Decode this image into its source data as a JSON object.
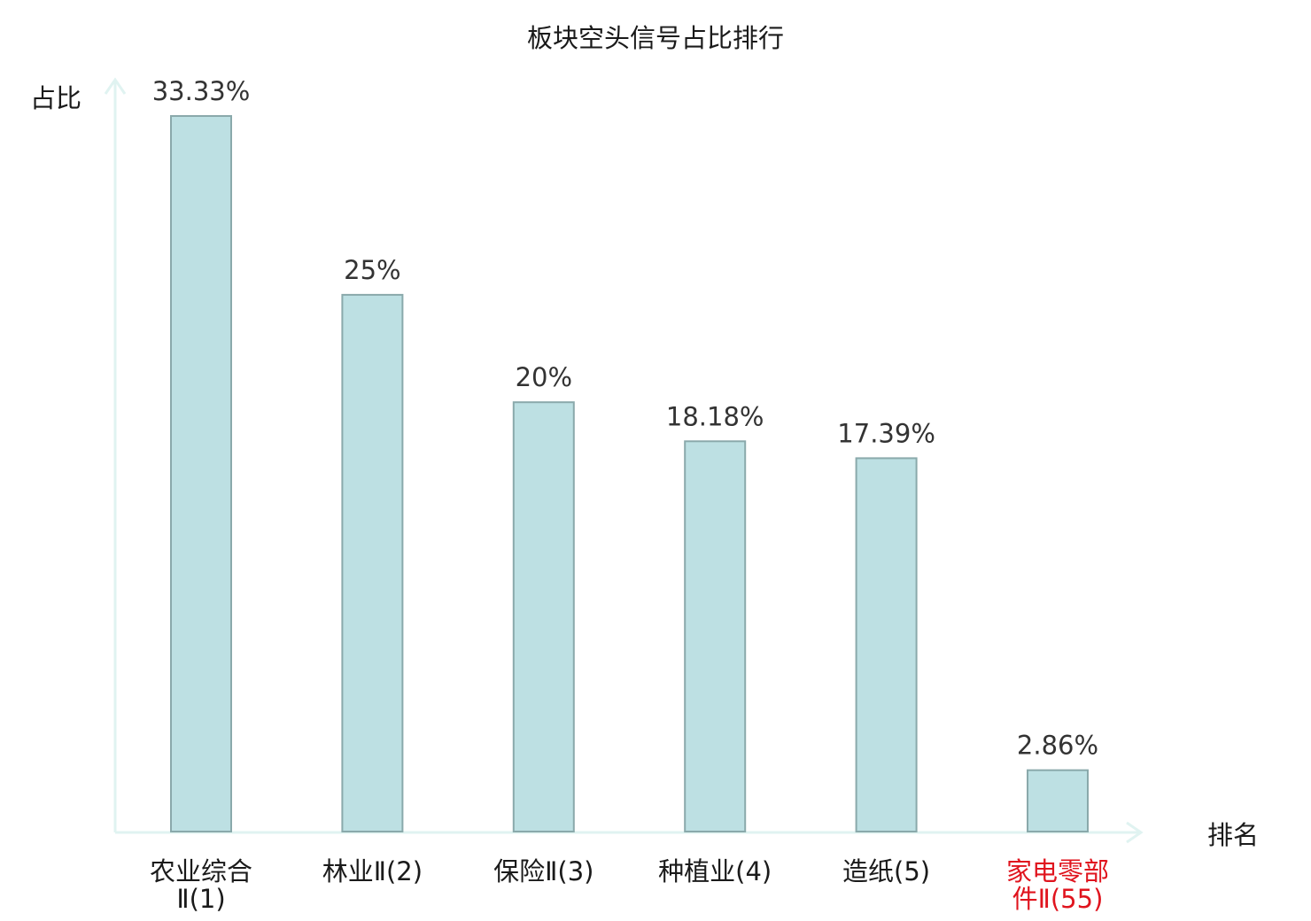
{
  "chart_data": {
    "type": "bar",
    "title": "板块空头信号占比排行",
    "ylabel": "占比",
    "xlabel": "排名",
    "grid": false,
    "legend": "none",
    "ylim": [
      0,
      33.33
    ],
    "categories": [
      {
        "name": [
          "农业综合",
          "Ⅱ(1)"
        ],
        "highlight": false
      },
      {
        "name": [
          "林业Ⅱ(2)"
        ],
        "highlight": false
      },
      {
        "name": [
          "保险Ⅱ(3)"
        ],
        "highlight": false
      },
      {
        "name": [
          "种植业(4)"
        ],
        "highlight": false
      },
      {
        "name": [
          "造纸(5)"
        ],
        "highlight": false
      },
      {
        "name": [
          "家电零部",
          "件Ⅱ(55)"
        ],
        "highlight": true
      }
    ],
    "values": [
      33.33,
      25,
      20,
      18.18,
      17.39,
      2.86
    ],
    "value_labels": [
      "33.33%",
      "25%",
      "20%",
      "18.18%",
      "17.39%",
      "2.86%"
    ],
    "colors": {
      "bar_fill": "#bde0e3",
      "bar_stroke": "#8aa9ab",
      "axis": "#e0f3f1",
      "text": "#1a1a1a",
      "value_text": "#333333",
      "highlight_text": "#e0141e"
    }
  }
}
